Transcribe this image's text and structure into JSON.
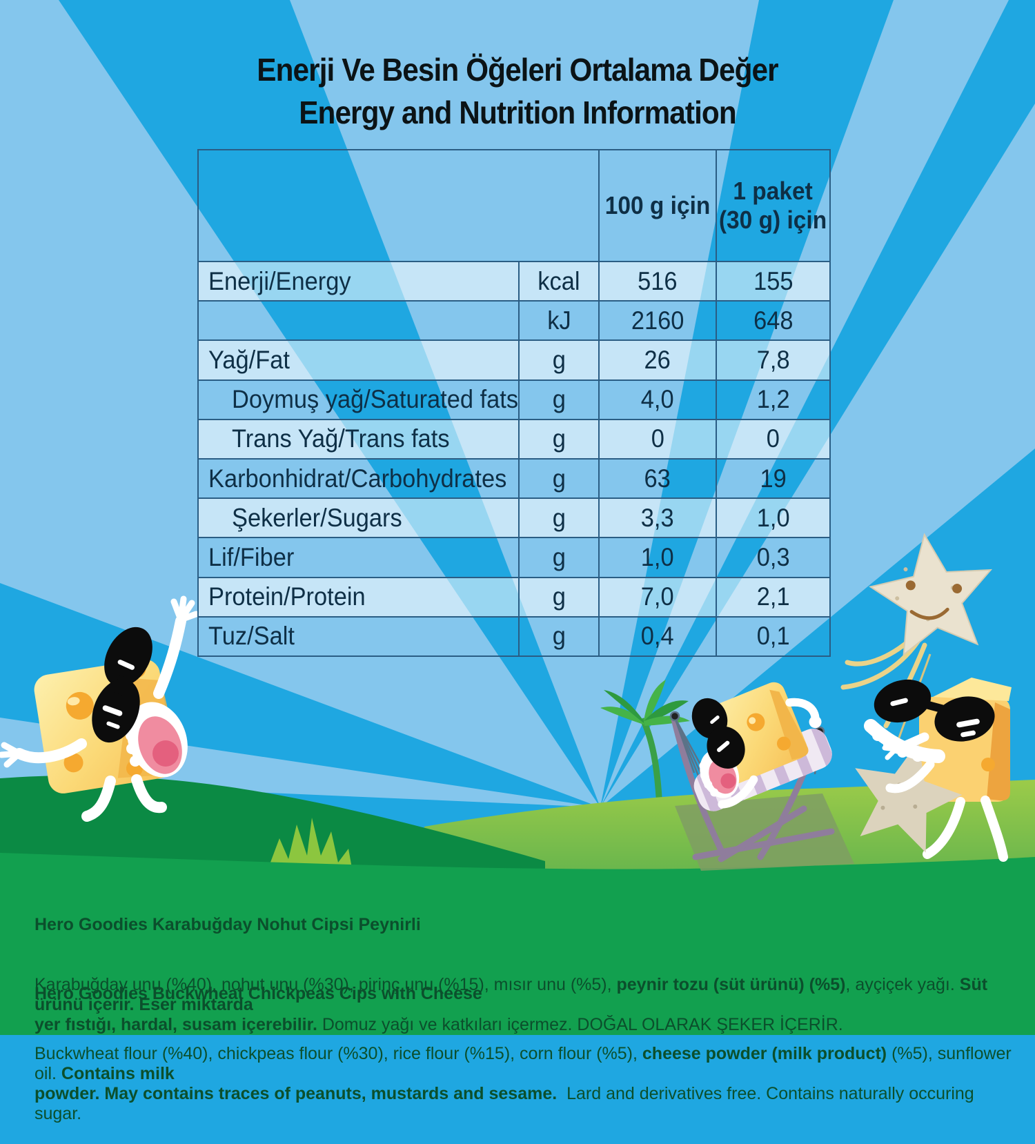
{
  "title": {
    "line1": "Enerji Ve Besin Öğeleri Ortalama Değer",
    "line2": "Energy and Nutrition Information"
  },
  "table": {
    "header": {
      "col_100g": "100 g için",
      "col_pack_line1": "1 paket",
      "col_pack_line2": "(30 g) için"
    },
    "rows": [
      {
        "label": "Enerji/Energy",
        "unit": "kcal",
        "per100": "516",
        "perPack": "155",
        "indent": false,
        "shaded": true
      },
      {
        "label": "",
        "unit": "kJ",
        "per100": "2160",
        "perPack": "648",
        "indent": false,
        "shaded": false
      },
      {
        "label": "Yağ/Fat",
        "unit": "g",
        "per100": "26",
        "perPack": "7,8",
        "indent": false,
        "shaded": true
      },
      {
        "label": "Doymuş yağ/Saturated fats",
        "unit": "g",
        "per100": "4,0",
        "perPack": "1,2",
        "indent": true,
        "shaded": false
      },
      {
        "label": "Trans Yağ/Trans fats",
        "unit": "g",
        "per100": "0",
        "perPack": "0",
        "indent": true,
        "shaded": true
      },
      {
        "label": "Karbonhidrat/Carbohydrates",
        "unit": "g",
        "per100": "63",
        "perPack": "19",
        "indent": false,
        "shaded": false
      },
      {
        "label": "Şekerler/Sugars",
        "unit": "g",
        "per100": "3,3",
        "perPack": "1,0",
        "indent": true,
        "shaded": true
      },
      {
        "label": "Lif/Fiber",
        "unit": "g",
        "per100": "1,0",
        "perPack": "0,3",
        "indent": false,
        "shaded": false
      },
      {
        "label": "Protein/Protein",
        "unit": "g",
        "per100": "7,0",
        "perPack": "2,1",
        "indent": false,
        "shaded": true
      },
      {
        "label": "Tuz/Salt",
        "unit": "g",
        "per100": "0,4",
        "perPack": "0,1",
        "indent": false,
        "shaded": false
      }
    ]
  },
  "ingredients_tr": {
    "heading": "Hero Goodies Karabuğday Nohut Cipsi Peynirli",
    "body": [
      {
        "t": "Karabuğday unu (%40), nohut unu (%30), pirinç unu (%15), mısır unu (%5), ",
        "b": 0
      },
      {
        "t": "peynir tozu (süt ürünü) (%5)",
        "b": 1
      },
      {
        "t": ", ayçiçek yağı. ",
        "b": 0
      },
      {
        "t": "Süt ürünü içerir. Eser miktarda\nyer fıstığı, hardal, susam içerebilir.",
        "b": 1
      },
      {
        "t": " Domuz yağı ve katkıları içermez. DOĞAL OLARAK ŞEKER İÇERİR.",
        "b": 0
      }
    ]
  },
  "ingredients_en": {
    "heading": "Hero Goodies Buckwheat Chickpeas Cips with Cheese",
    "body": [
      {
        "t": "Buckwheat flour (%40), chickpeas flour (%30), rice flour (%15), corn flour (%5), ",
        "b": 0
      },
      {
        "t": "cheese powder (milk product)",
        "b": 1
      },
      {
        "t": " (%5), sunflower oil. ",
        "b": 0
      },
      {
        "t": "Contains milk\npowder. May contains traces of peanuts, mustards and sesame.",
        "b": 1
      },
      {
        "t": "  Lard and derivatives free. Contains naturally occuring sugar.",
        "b": 0
      }
    ]
  },
  "colors": {
    "sky_base": "#1fa7e1",
    "sky_ray_light": "#84c6ed",
    "hill_dark_green": "#0b8a44",
    "hill_light_green_top": "#9ccb49",
    "hill_light_green_bottom": "#5bb04e",
    "bottom_band_green": "#12a04f",
    "ingredient_text_green": "#0b4f2c",
    "table_border": "#2a5d84",
    "table_text": "#0e2f46",
    "row_overlay": "rgba(255,255,255,0.54)",
    "cheese_yellow": "#fbd977",
    "cheese_hole_orange": "#f5a930"
  }
}
